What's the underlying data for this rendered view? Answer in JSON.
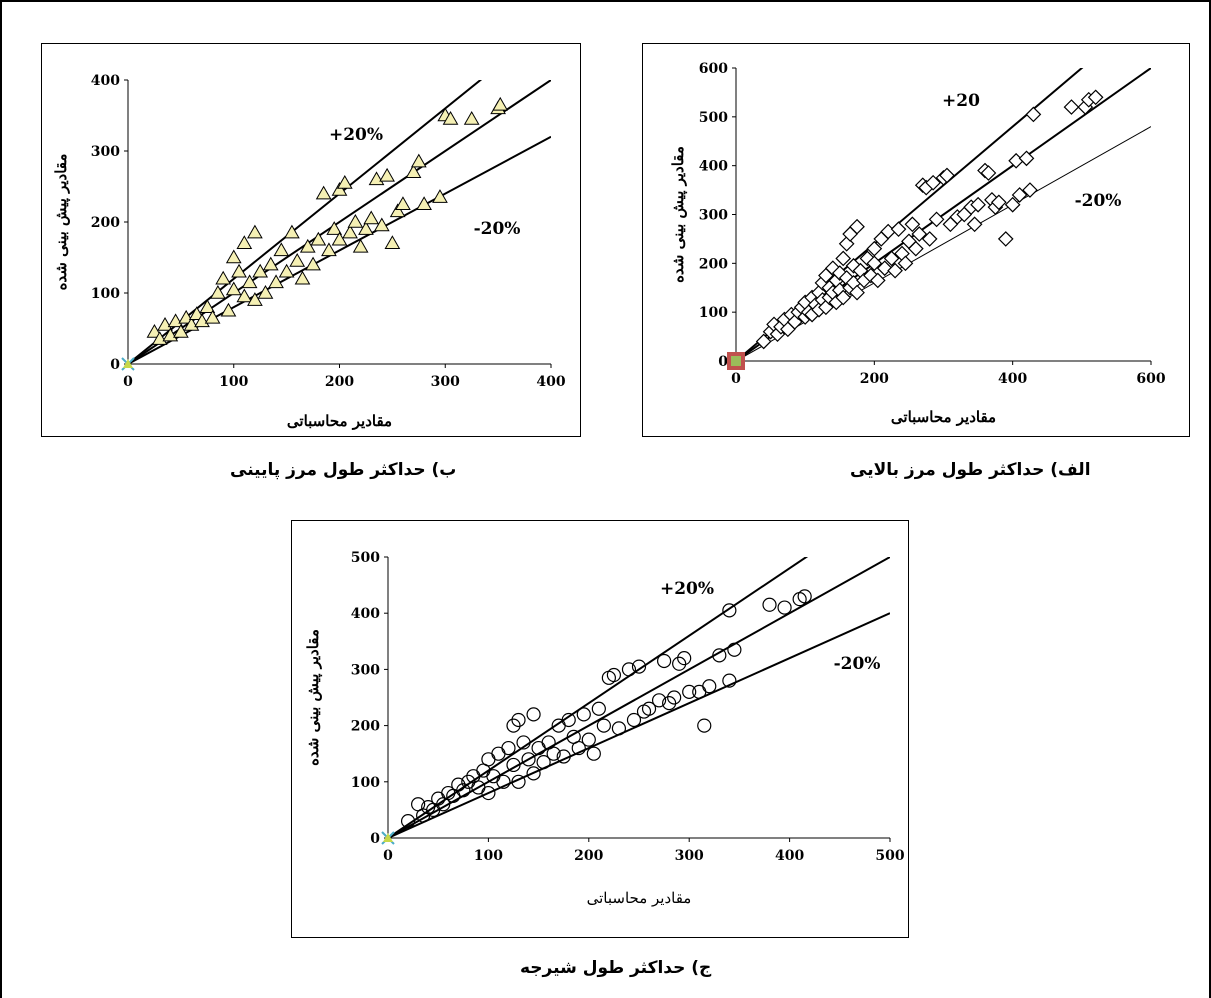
{
  "colors": {
    "marker_fill_a": "#ffffff",
    "marker_fill_b": "#f5f0b4",
    "marker_fill_c": "#ffffff",
    "line": "#000000",
    "origin_box": "#c0504d",
    "origin_box_inner": "#9bbb59",
    "origin_mark": "#4bacc6",
    "origin_mark_b": "#c7d84a"
  },
  "captions": {
    "a": "الف) حداکثر طول مرز بالایی",
    "b": "ب) حداکثر طول مرز پایینی",
    "c": "ج) حداکثر طول شیرجه"
  },
  "chart_data": [
    {
      "id": "a",
      "type": "scatter",
      "marker": "diamond",
      "xlabel": "مقادیر محاسباتی",
      "ylabel": "مقادیر پیش بینی شده",
      "xlim": [
        0,
        600
      ],
      "ylim": [
        0,
        600
      ],
      "xticks": [
        "0",
        "200",
        "400",
        "600"
      ],
      "yticks": [
        "0",
        "100",
        "200",
        "300",
        "400",
        "500",
        "600"
      ],
      "lines": [
        {
          "label": "+20",
          "slope": 1.2
        },
        {
          "label": "",
          "slope": 1.0
        },
        {
          "label": "-20%",
          "slope": 0.8
        }
      ],
      "points": [
        [
          40,
          40
        ],
        [
          50,
          60
        ],
        [
          55,
          75
        ],
        [
          60,
          55
        ],
        [
          65,
          70
        ],
        [
          70,
          85
        ],
        [
          75,
          65
        ],
        [
          80,
          95
        ],
        [
          85,
          80
        ],
        [
          90,
          100
        ],
        [
          95,
          110
        ],
        [
          100,
          90
        ],
        [
          100,
          120
        ],
        [
          105,
          100
        ],
        [
          110,
          130
        ],
        [
          110,
          95
        ],
        [
          115,
          115
        ],
        [
          120,
          140
        ],
        [
          120,
          105
        ],
        [
          125,
          160
        ],
        [
          125,
          125
        ],
        [
          130,
          175
        ],
        [
          130,
          110
        ],
        [
          135,
          150
        ],
        [
          135,
          130
        ],
        [
          140,
          190
        ],
        [
          140,
          140
        ],
        [
          145,
          120
        ],
        [
          145,
          165
        ],
        [
          150,
          180
        ],
        [
          150,
          145
        ],
        [
          155,
          130
        ],
        [
          155,
          210
        ],
        [
          160,
          170
        ],
        [
          160,
          240
        ],
        [
          165,
          150
        ],
        [
          165,
          260
        ],
        [
          170,
          195
        ],
        [
          170,
          160
        ],
        [
          175,
          275
        ],
        [
          175,
          140
        ],
        [
          180,
          185
        ],
        [
          185,
          165
        ],
        [
          190,
          210
        ],
        [
          195,
          175
        ],
        [
          200,
          230
        ],
        [
          200,
          200
        ],
        [
          205,
          165
        ],
        [
          210,
          250
        ],
        [
          215,
          190
        ],
        [
          220,
          265
        ],
        [
          225,
          210
        ],
        [
          230,
          185
        ],
        [
          235,
          270
        ],
        [
          240,
          220
        ],
        [
          245,
          200
        ],
        [
          250,
          245
        ],
        [
          255,
          280
        ],
        [
          260,
          230
        ],
        [
          265,
          260
        ],
        [
          270,
          360
        ],
        [
          275,
          355
        ],
        [
          280,
          250
        ],
        [
          285,
          365
        ],
        [
          290,
          290
        ],
        [
          300,
          375
        ],
        [
          305,
          380
        ],
        [
          310,
          280
        ],
        [
          320,
          295
        ],
        [
          330,
          300
        ],
        [
          340,
          315
        ],
        [
          345,
          280
        ],
        [
          350,
          320
        ],
        [
          360,
          390
        ],
        [
          365,
          385
        ],
        [
          370,
          330
        ],
        [
          375,
          315
        ],
        [
          380,
          325
        ],
        [
          390,
          250
        ],
        [
          400,
          320
        ],
        [
          405,
          410
        ],
        [
          410,
          340
        ],
        [
          420,
          415
        ],
        [
          425,
          350
        ],
        [
          430,
          505
        ],
        [
          485,
          520
        ],
        [
          505,
          520
        ],
        [
          510,
          535
        ],
        [
          520,
          540
        ]
      ]
    },
    {
      "id": "b",
      "type": "scatter",
      "marker": "triangle",
      "xlabel": "مقادیر محاسباتی",
      "ylabel": "مقادیر پیش بینی شده",
      "xlim": [
        0,
        400
      ],
      "ylim": [
        0,
        400
      ],
      "xticks": [
        "0",
        "100",
        "200",
        "300",
        "400"
      ],
      "yticks": [
        "0",
        "100",
        "200",
        "300",
        "400"
      ],
      "lines": [
        {
          "label": "+20%",
          "slope": 1.2
        },
        {
          "label": "",
          "slope": 1.0
        },
        {
          "label": "-20%",
          "slope": 0.8
        }
      ],
      "points": [
        [
          25,
          45
        ],
        [
          30,
          35
        ],
        [
          35,
          55
        ],
        [
          40,
          40
        ],
        [
          45,
          60
        ],
        [
          50,
          45
        ],
        [
          55,
          65
        ],
        [
          60,
          55
        ],
        [
          65,
          70
        ],
        [
          70,
          60
        ],
        [
          75,
          80
        ],
        [
          80,
          65
        ],
        [
          85,
          100
        ],
        [
          90,
          120
        ],
        [
          95,
          75
        ],
        [
          100,
          105
        ],
        [
          100,
          150
        ],
        [
          105,
          130
        ],
        [
          110,
          170
        ],
        [
          110,
          95
        ],
        [
          115,
          115
        ],
        [
          120,
          185
        ],
        [
          120,
          90
        ],
        [
          125,
          130
        ],
        [
          130,
          100
        ],
        [
          135,
          140
        ],
        [
          140,
          115
        ],
        [
          145,
          160
        ],
        [
          150,
          130
        ],
        [
          155,
          185
        ],
        [
          160,
          145
        ],
        [
          165,
          120
        ],
        [
          170,
          165
        ],
        [
          175,
          140
        ],
        [
          180,
          175
        ],
        [
          185,
          240
        ],
        [
          190,
          160
        ],
        [
          195,
          190
        ],
        [
          200,
          245
        ],
        [
          200,
          175
        ],
        [
          205,
          255
        ],
        [
          210,
          185
        ],
        [
          215,
          200
        ],
        [
          220,
          165
        ],
        [
          225,
          190
        ],
        [
          230,
          205
        ],
        [
          235,
          260
        ],
        [
          240,
          195
        ],
        [
          245,
          265
        ],
        [
          250,
          170
        ],
        [
          255,
          215
        ],
        [
          260,
          225
        ],
        [
          270,
          270
        ],
        [
          275,
          285
        ],
        [
          280,
          225
        ],
        [
          295,
          235
        ],
        [
          300,
          350
        ],
        [
          305,
          345
        ],
        [
          325,
          345
        ],
        [
          350,
          360
        ],
        [
          352,
          365
        ]
      ]
    },
    {
      "id": "c",
      "type": "scatter",
      "marker": "circle",
      "xlabel": "مقادیر محاسباتی",
      "ylabel": "مقادیر پیش بینی شده",
      "xlim": [
        0,
        500
      ],
      "ylim": [
        0,
        500
      ],
      "xticks": [
        "0",
        "100",
        "200",
        "300",
        "400",
        "500"
      ],
      "yticks": [
        "0",
        "100",
        "200",
        "300",
        "400",
        "500"
      ],
      "lines": [
        {
          "label": "+20%",
          "slope": 1.2
        },
        {
          "label": "",
          "slope": 1.0
        },
        {
          "label": "-20%",
          "slope": 0.8
        }
      ],
      "points": [
        [
          20,
          30
        ],
        [
          30,
          60
        ],
        [
          35,
          40
        ],
        [
          40,
          55
        ],
        [
          45,
          50
        ],
        [
          50,
          70
        ],
        [
          55,
          60
        ],
        [
          60,
          80
        ],
        [
          65,
          75
        ],
        [
          70,
          95
        ],
        [
          75,
          85
        ],
        [
          80,
          100
        ],
        [
          85,
          110
        ],
        [
          90,
          90
        ],
        [
          95,
          120
        ],
        [
          100,
          80
        ],
        [
          100,
          140
        ],
        [
          105,
          110
        ],
        [
          110,
          150
        ],
        [
          115,
          100
        ],
        [
          120,
          160
        ],
        [
          125,
          200
        ],
        [
          125,
          130
        ],
        [
          130,
          210
        ],
        [
          130,
          100
        ],
        [
          135,
          170
        ],
        [
          140,
          140
        ],
        [
          145,
          220
        ],
        [
          145,
          115
        ],
        [
          150,
          160
        ],
        [
          155,
          135
        ],
        [
          160,
          170
        ],
        [
          165,
          150
        ],
        [
          170,
          200
        ],
        [
          175,
          145
        ],
        [
          180,
          210
        ],
        [
          185,
          180
        ],
        [
          190,
          160
        ],
        [
          195,
          220
        ],
        [
          200,
          175
        ],
        [
          205,
          150
        ],
        [
          210,
          230
        ],
        [
          215,
          200
        ],
        [
          220,
          285
        ],
        [
          225,
          290
        ],
        [
          230,
          195
        ],
        [
          240,
          300
        ],
        [
          245,
          210
        ],
        [
          250,
          305
        ],
        [
          255,
          225
        ],
        [
          260,
          230
        ],
        [
          270,
          245
        ],
        [
          275,
          315
        ],
        [
          280,
          240
        ],
        [
          285,
          250
        ],
        [
          290,
          310
        ],
        [
          295,
          320
        ],
        [
          300,
          260
        ],
        [
          310,
          260
        ],
        [
          315,
          200
        ],
        [
          320,
          270
        ],
        [
          330,
          325
        ],
        [
          340,
          280
        ],
        [
          340,
          405
        ],
        [
          345,
          335
        ],
        [
          380,
          415
        ],
        [
          395,
          410
        ],
        [
          410,
          425
        ],
        [
          415,
          430
        ]
      ]
    }
  ]
}
